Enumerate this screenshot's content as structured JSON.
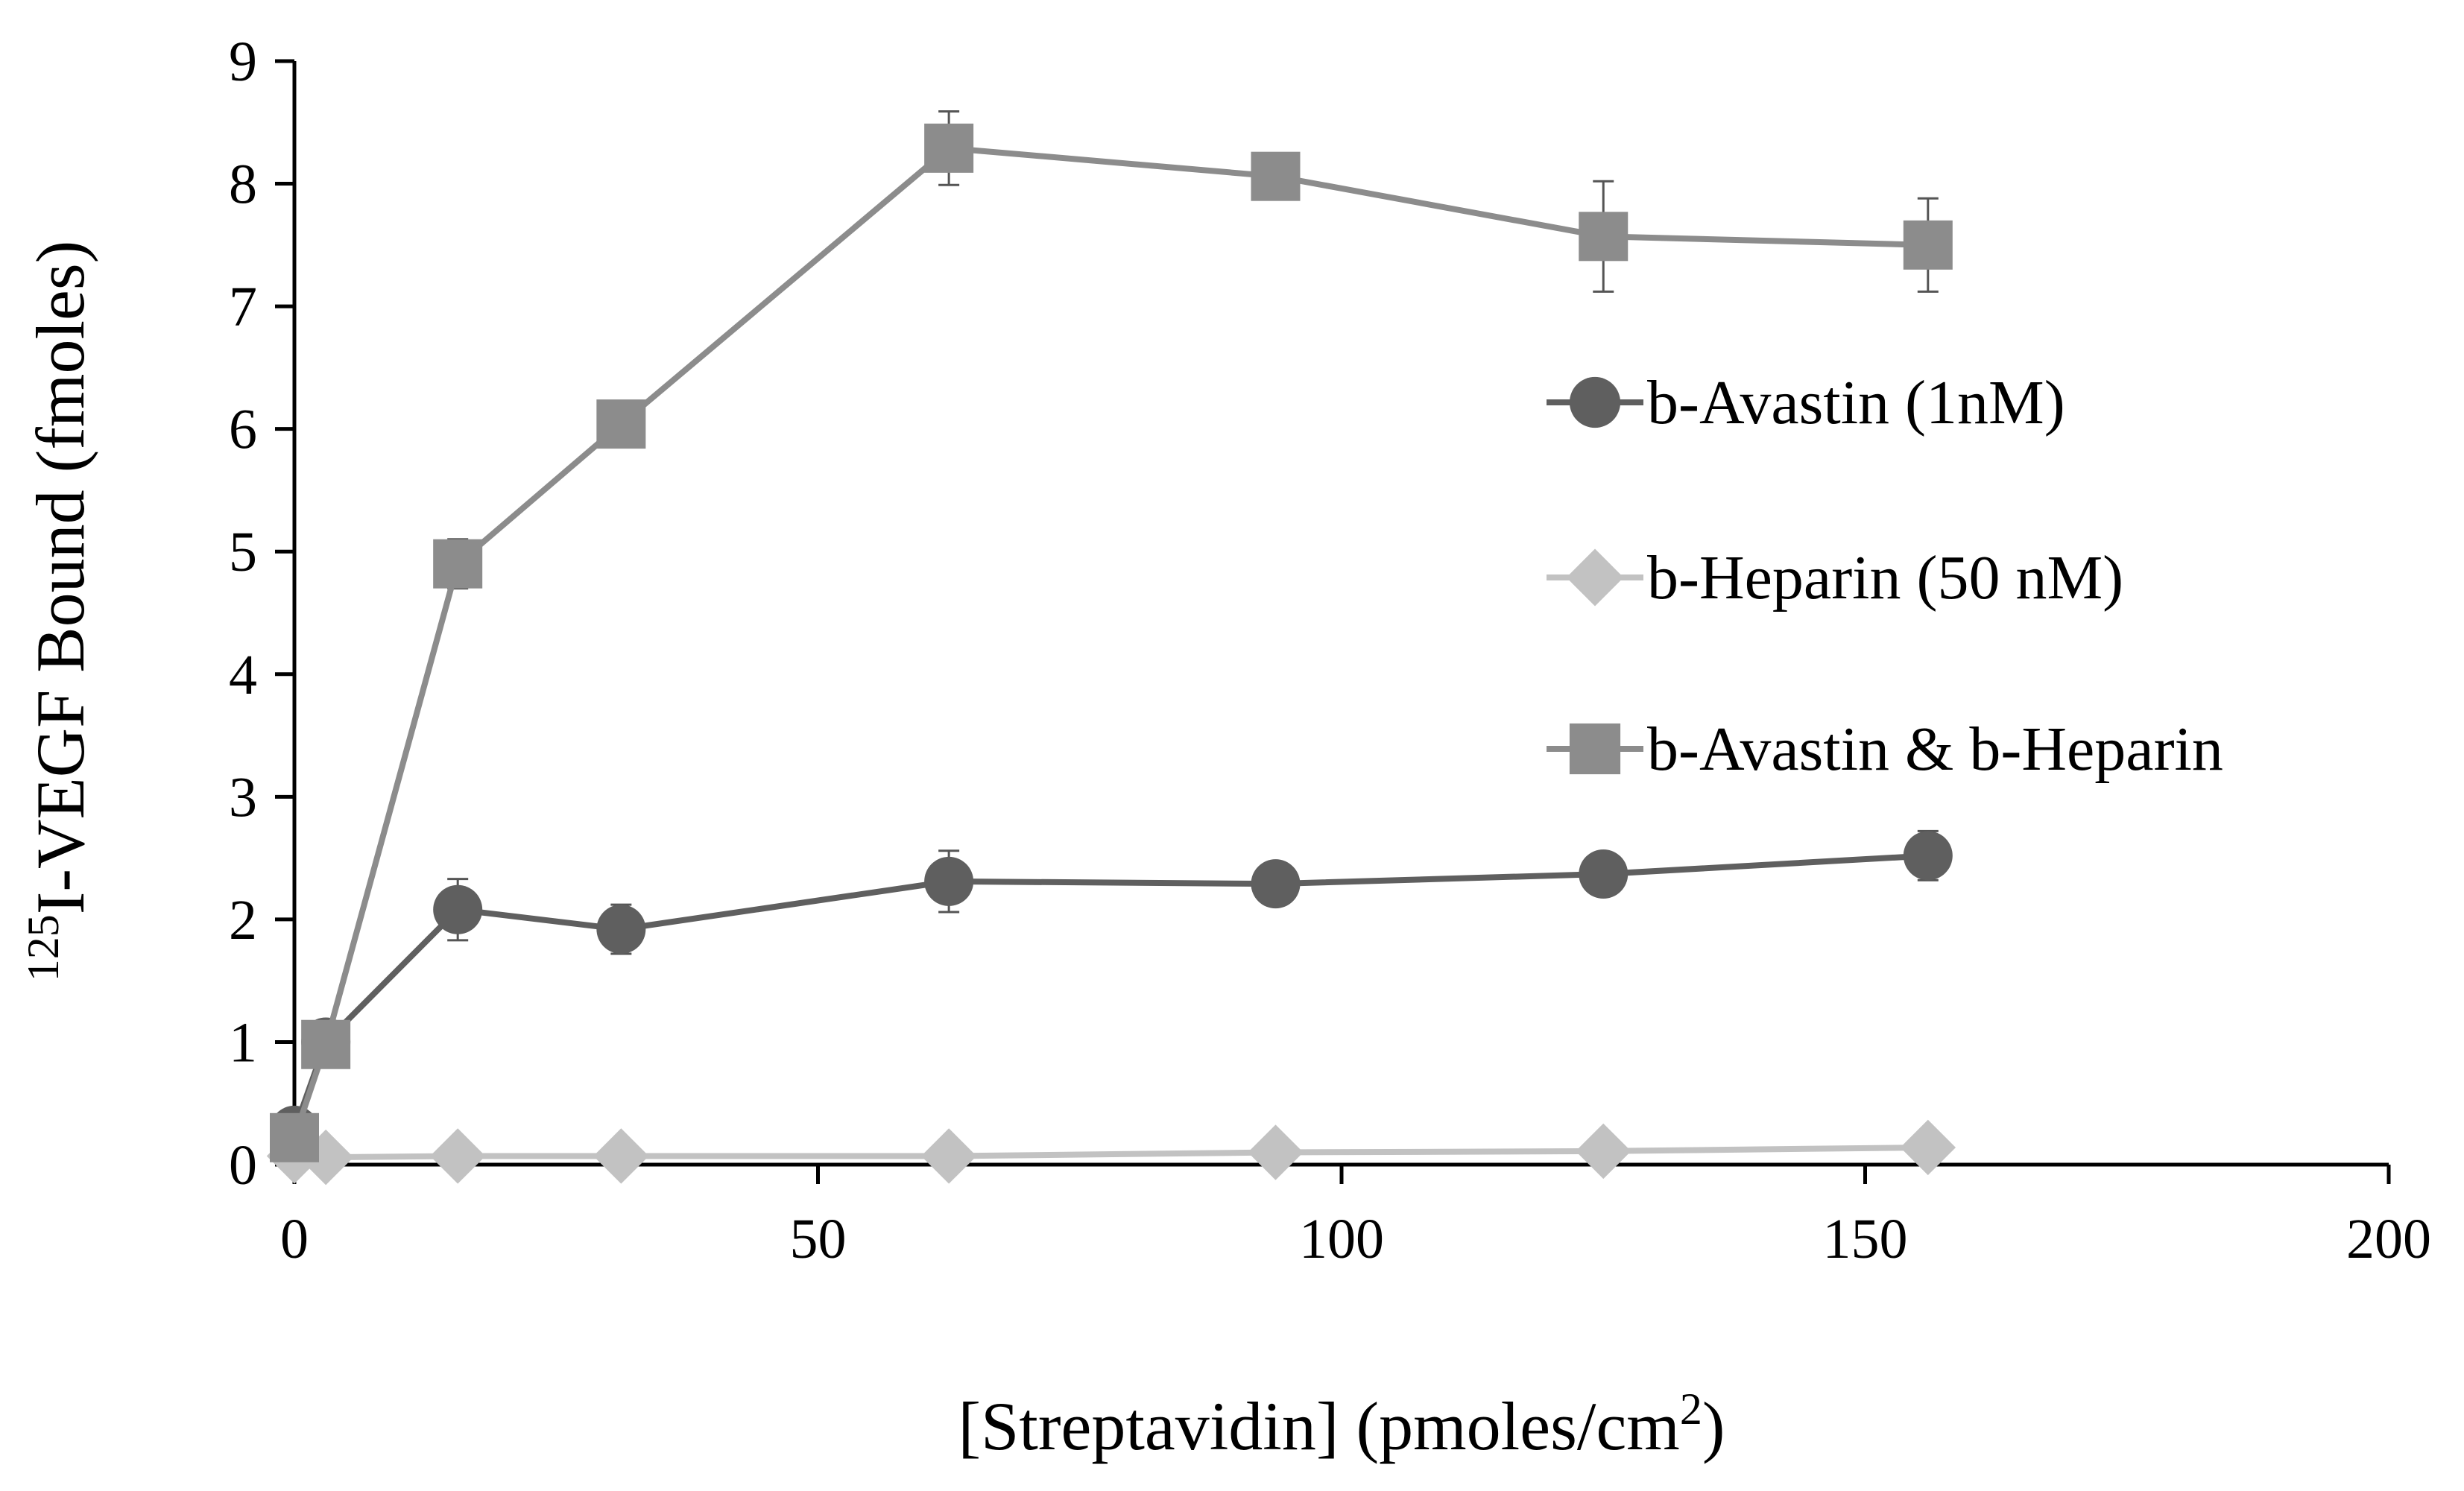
{
  "chart_data": {
    "type": "line",
    "title": "",
    "xlabel": {
      "main": "[Streptavidin] (pmoles/cm",
      "sup": "2",
      "tail": ")"
    },
    "ylabel": {
      "sup": "125",
      "main": "I-VEGF Bound (fmoles)"
    },
    "xlim": [
      0,
      200
    ],
    "ylim": [
      0,
      9
    ],
    "x_ticks": [
      "0",
      "50",
      "100",
      "150",
      "200"
    ],
    "y_ticks": [
      "0",
      "1",
      "2",
      "3",
      "4",
      "5",
      "6",
      "7",
      "8",
      "9"
    ],
    "x_tick_values": [
      0,
      50,
      100,
      150,
      200
    ],
    "y_tick_values": [
      0,
      1,
      2,
      3,
      4,
      5,
      6,
      7,
      8,
      9
    ],
    "grid": false,
    "legend_position": "right",
    "series": [
      {
        "name": "b-Avastin (1nM)",
        "marker": "circle",
        "color": "#5f5f5f",
        "x": [
          0,
          3,
          15.6,
          31.2,
          62.5,
          93.7,
          125,
          156
        ],
        "values": [
          0.28,
          1.0,
          2.08,
          1.92,
          2.31,
          2.29,
          2.37,
          2.52
        ],
        "errors": [
          0.05,
          0.1,
          0.25,
          0.2,
          0.25,
          0.05,
          0.1,
          0.2
        ]
      },
      {
        "name": "b-Heparin (50 nM)",
        "marker": "diamond",
        "color": "#c2c2c2",
        "x": [
          0,
          3,
          15.6,
          31.2,
          62.5,
          93.7,
          125,
          156
        ],
        "values": [
          0.07,
          0.06,
          0.07,
          0.07,
          0.07,
          0.1,
          0.11,
          0.14
        ],
        "errors": [
          0.02,
          0.02,
          0.02,
          0.02,
          0.02,
          0.02,
          0.02,
          0.02
        ]
      },
      {
        "name": "b-Avastin & b-Heparin",
        "marker": "square",
        "color": "#8c8c8c",
        "x": [
          0,
          3,
          15.6,
          31.2,
          62.5,
          93.7,
          125,
          156
        ],
        "values": [
          0.22,
          0.98,
          4.9,
          6.04,
          8.29,
          8.06,
          7.57,
          7.5
        ],
        "errors": [
          0.05,
          0.1,
          0.2,
          0.1,
          0.3,
          0.15,
          0.45,
          0.38
        ]
      }
    ]
  }
}
